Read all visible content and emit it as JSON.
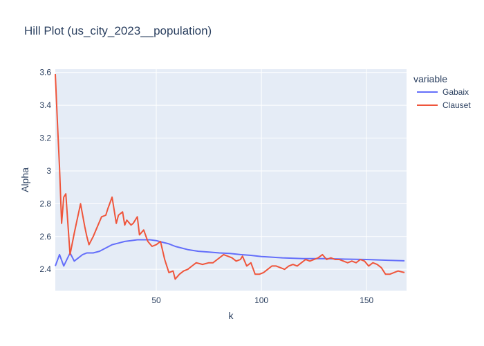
{
  "chart_data": {
    "type": "line",
    "title": "Hill Plot (us_city_2023__population)",
    "xlabel": "k",
    "ylabel": "Alpha",
    "xlim": [
      2,
      169
    ],
    "ylim": [
      2.27,
      3.62
    ],
    "xticks": [
      50,
      100,
      150
    ],
    "yticks": [
      2.4,
      2.6,
      2.8,
      3,
      3.2,
      3.4,
      3.6
    ],
    "ytick_labels": [
      "2.4",
      "2.6",
      "2.8",
      "3",
      "3.2",
      "3.4",
      "3.6"
    ],
    "grid": true,
    "legend": {
      "title": "variable",
      "position": "top-right"
    },
    "colors": {
      "plot_bg": "#e5ecf6",
      "gabaix": "#636efa",
      "clauset": "#ef553b"
    },
    "series": [
      {
        "name": "Gabaix",
        "color": "#636efa",
        "x": [
          2,
          4,
          6,
          9,
          11,
          13,
          15,
          17,
          20,
          23,
          26,
          29,
          32,
          35,
          38,
          41,
          44,
          47,
          50,
          53,
          56,
          59,
          62,
          65,
          70,
          75,
          80,
          85,
          90,
          95,
          100,
          110,
          120,
          130,
          140,
          150,
          160,
          168
        ],
        "y": [
          2.42,
          2.49,
          2.42,
          2.5,
          2.45,
          2.47,
          2.49,
          2.5,
          2.5,
          2.51,
          2.53,
          2.55,
          2.56,
          2.57,
          2.575,
          2.58,
          2.58,
          2.58,
          2.575,
          2.565,
          2.555,
          2.54,
          2.53,
          2.52,
          2.51,
          2.505,
          2.5,
          2.497,
          2.49,
          2.485,
          2.478,
          2.47,
          2.465,
          2.465,
          2.462,
          2.46,
          2.455,
          2.452
        ]
      },
      {
        "name": "Clauset",
        "color": "#ef553b",
        "x": [
          2,
          3,
          4,
          5,
          6,
          7,
          9,
          11,
          12,
          14,
          16,
          17,
          18,
          20,
          22,
          24,
          26,
          27,
          29,
          31,
          32,
          34,
          35,
          36,
          38,
          39,
          41,
          42,
          44,
          46,
          48,
          50,
          52,
          54,
          56,
          58,
          59,
          61,
          63,
          65,
          67,
          69,
          72,
          75,
          77,
          79,
          82,
          84,
          86,
          88,
          90,
          91,
          93,
          95,
          97,
          99,
          101,
          103,
          105,
          107,
          109,
          111,
          113,
          115,
          117,
          119,
          121,
          123,
          125,
          127,
          129,
          131,
          133,
          135,
          137,
          139,
          141,
          143,
          145,
          147,
          149,
          151,
          153,
          155,
          157,
          159,
          161,
          163,
          165,
          168
        ],
        "y": [
          3.59,
          3.3,
          3.02,
          2.68,
          2.84,
          2.86,
          2.49,
          2.62,
          2.68,
          2.8,
          2.66,
          2.6,
          2.55,
          2.6,
          2.66,
          2.72,
          2.73,
          2.77,
          2.84,
          2.68,
          2.73,
          2.75,
          2.67,
          2.7,
          2.67,
          2.68,
          2.72,
          2.61,
          2.64,
          2.57,
          2.54,
          2.55,
          2.57,
          2.46,
          2.38,
          2.39,
          2.34,
          2.37,
          2.39,
          2.4,
          2.42,
          2.44,
          2.43,
          2.44,
          2.44,
          2.46,
          2.49,
          2.48,
          2.47,
          2.45,
          2.46,
          2.48,
          2.42,
          2.44,
          2.37,
          2.37,
          2.38,
          2.4,
          2.42,
          2.42,
          2.41,
          2.4,
          2.42,
          2.43,
          2.42,
          2.44,
          2.46,
          2.45,
          2.46,
          2.47,
          2.49,
          2.46,
          2.47,
          2.46,
          2.46,
          2.45,
          2.44,
          2.45,
          2.44,
          2.46,
          2.45,
          2.42,
          2.44,
          2.43,
          2.41,
          2.37,
          2.37,
          2.38,
          2.39,
          2.38
        ]
      }
    ]
  }
}
